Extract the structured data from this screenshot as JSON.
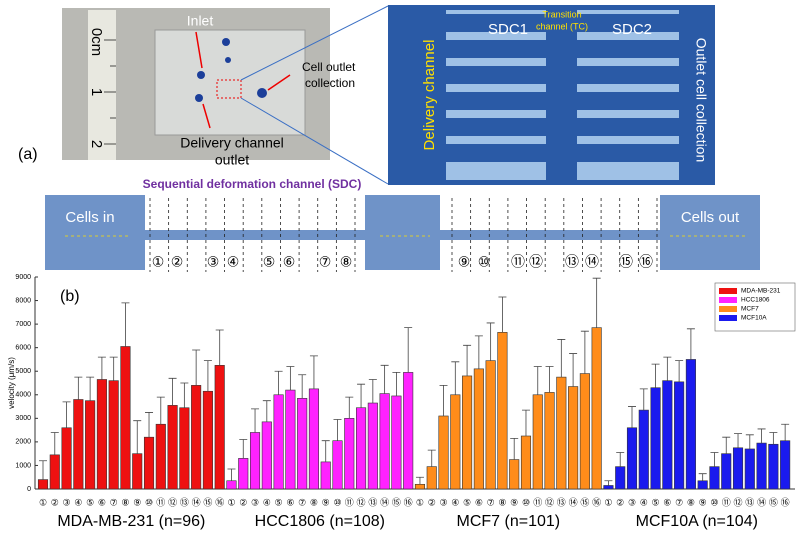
{
  "panel_a": {
    "label": "(a)",
    "photo": {
      "inlet": "Inlet",
      "ruler": [
        "0cm",
        "1",
        "2"
      ],
      "cell_outlet": [
        "Cell outlet",
        "collection"
      ],
      "delivery_outlet": [
        "Delivery channel",
        "outlet"
      ]
    },
    "microscope": {
      "sdc1": "SDC1",
      "transition": [
        "Transition",
        "channel (TC)"
      ],
      "sdc2": "SDC2",
      "delivery": "Delivery channel",
      "outlet": "Outlet cell collection"
    },
    "schematic": {
      "cells_in": "Cells in",
      "cells_out": "Cells out",
      "title": "Sequential deformation channel (SDC)",
      "positions": [
        "①",
        "②",
        "③",
        "④",
        "⑤",
        "⑥",
        "⑦",
        "⑧",
        "⑨",
        "⑩",
        "⑪",
        "⑫",
        "⑬",
        "⑭",
        "⑮",
        "⑯"
      ]
    }
  },
  "panel_b_label": "(b)",
  "chart_data": {
    "type": "bar",
    "y_label": "velocity (μm/s)",
    "categories": [
      "①",
      "②",
      "③",
      "④",
      "⑤",
      "⑥",
      "⑦",
      "⑧",
      "⑨",
      "⑩",
      "⑪",
      "⑫",
      "⑬",
      "⑭",
      "⑮",
      "⑯"
    ],
    "group_labels": [
      "MDA-MB-231 (n=96)",
      "HCC1806 (n=108)",
      "MCF7 (n=101)",
      "MCF10A (n=104)"
    ],
    "series": [
      {
        "name": "MDA-MB-231",
        "color": "#ee1111",
        "values": [
          400,
          1450,
          2600,
          3800,
          3750,
          4650,
          4600,
          6050,
          1500,
          2200,
          2750,
          3550,
          3450,
          4400,
          4150,
          5250
        ],
        "errors": [
          800,
          950,
          1100,
          950,
          1000,
          950,
          1000,
          1850,
          1400,
          1050,
          1150,
          1150,
          1050,
          1500,
          1300,
          1500
        ]
      },
      {
        "name": "HCC1806",
        "color": "#ff22ff",
        "values": [
          350,
          1300,
          2400,
          2850,
          4000,
          4200,
          3850,
          4250,
          1150,
          2050,
          3000,
          3450,
          3650,
          4050,
          3950,
          4950
        ],
        "errors": [
          500,
          800,
          1000,
          900,
          1000,
          1000,
          1000,
          1400,
          900,
          900,
          900,
          1000,
          1000,
          1200,
          1000,
          1900
        ]
      },
      {
        "name": "MCF7",
        "color": "#ff8c1a",
        "values": [
          200,
          950,
          3100,
          4000,
          4800,
          5100,
          5450,
          6650,
          1250,
          2250,
          4000,
          4100,
          4750,
          4350,
          4900,
          6850
        ],
        "errors": [
          300,
          700,
          1300,
          1400,
          1300,
          1400,
          1600,
          1500,
          900,
          1100,
          1200,
          1100,
          1600,
          1400,
          1800,
          2100
        ]
      },
      {
        "name": "MCF10A",
        "color": "#1a1aee",
        "values": [
          150,
          950,
          2600,
          3350,
          4300,
          4600,
          4550,
          5500,
          350,
          950,
          1500,
          1750,
          1700,
          1950,
          1900,
          2050
        ],
        "errors": [
          200,
          600,
          900,
          900,
          1000,
          1000,
          900,
          1300,
          300,
          600,
          700,
          600,
          600,
          600,
          500,
          700
        ]
      }
    ],
    "ylim": [
      0,
      9000
    ],
    "yticks": [
      0,
      1000,
      2000,
      3000,
      4000,
      5000,
      6000,
      7000,
      8000,
      9000
    ],
    "legend": "upper right",
    "grid": false
  }
}
